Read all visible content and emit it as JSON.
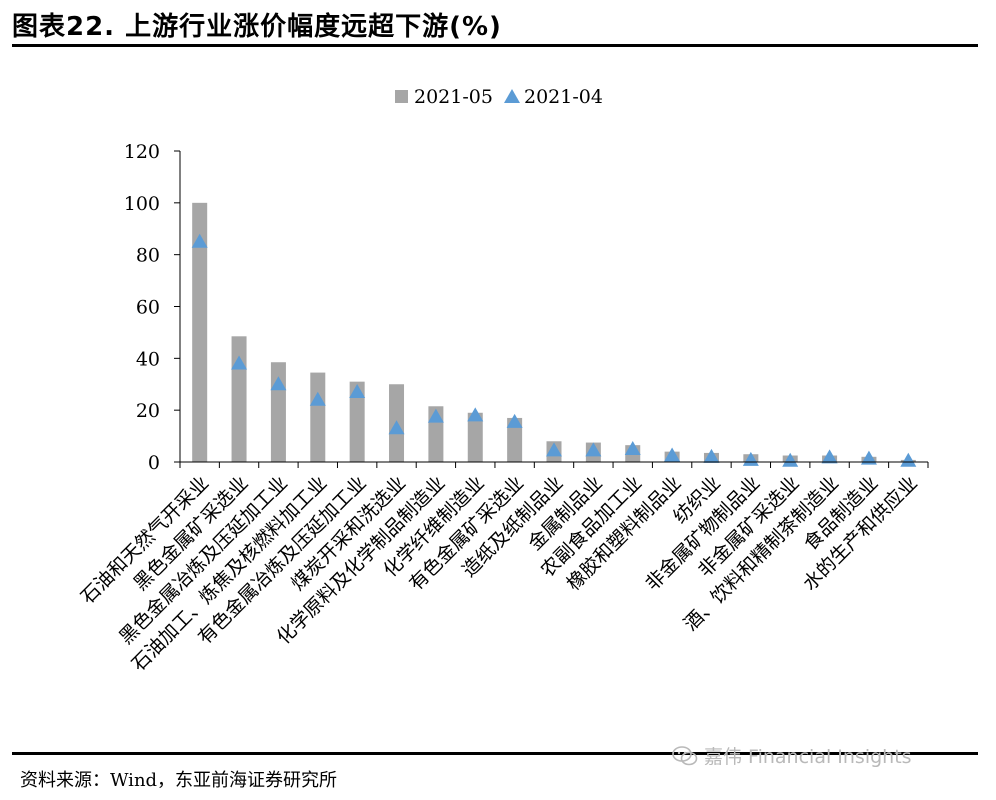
{
  "header": {
    "title": "图表22. 上游行业涨价幅度远超下游(%)"
  },
  "footer": {
    "source": "资料来源：Wind，东亚前海证券研究所",
    "watermark": "嘉伟 Financial Insights",
    "watermark_icon": "wechat-icon"
  },
  "colors": {
    "bar": "#a6a6a6",
    "marker": "#5b9bd5"
  },
  "chart_data": {
    "type": "bar",
    "title": "",
    "xlabel": "",
    "ylabel": "",
    "ylim": [
      0,
      120
    ],
    "yticks": [
      0,
      20,
      40,
      60,
      80,
      100,
      120
    ],
    "legend_position": "top-center",
    "grid": false,
    "categories": [
      "石油和天然气开采业",
      "黑色金属矿采选业",
      "黑色金属冶炼及压延加工业",
      "石油加工、炼焦及核燃料加工业",
      "有色金属冶炼及压延加工业",
      "煤炭开采和洗选业",
      "化学原料及化学制品制造业",
      "化学纤维制造业",
      "有色金属矿采选业",
      "造纸及纸制品业",
      "金属制品业",
      "农副食品加工业",
      "橡胶和塑料制品业",
      "纺织业",
      "非金属矿物制品业",
      "非金属矿采选业",
      "酒、饮料和精制茶制造业",
      "食品制造业",
      "水的生产和供应业"
    ],
    "series": [
      {
        "name": "2021-05",
        "kind": "bar",
        "values": [
          100,
          48.5,
          38.5,
          34.5,
          31,
          30,
          21.5,
          19,
          17,
          8,
          7.5,
          6.5,
          4,
          3.5,
          3,
          2.5,
          2.5,
          2,
          0.8
        ]
      },
      {
        "name": "2021-04",
        "kind": "marker",
        "values": [
          85,
          38,
          30,
          24,
          27,
          13,
          17.5,
          18,
          15.5,
          4.5,
          4.5,
          5,
          2.5,
          2,
          0.8,
          0.5,
          1.8,
          1.3,
          0.5
        ]
      }
    ]
  }
}
